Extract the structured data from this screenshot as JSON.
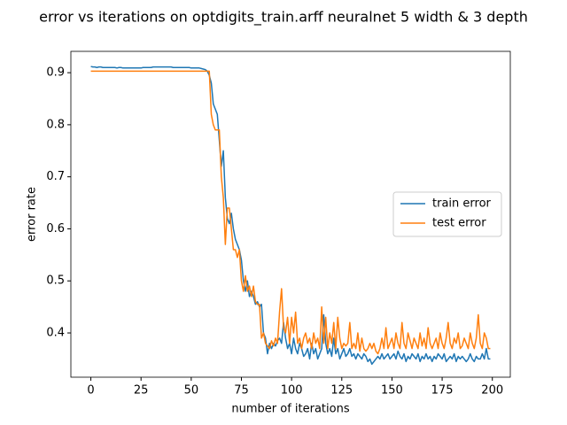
{
  "chart_data": {
    "type": "line",
    "title": "error vs iterations on optdigits_train.arff neuralnet 5 width & 3 depth",
    "x_label": "number of iterations",
    "y_label": "error rate",
    "xlim": [
      -9.95,
      208.95
    ],
    "ylim": [
      0.315,
      0.941
    ],
    "xticks": [
      0,
      25,
      50,
      75,
      100,
      125,
      150,
      175,
      200
    ],
    "yticks": [
      0.4,
      0.5,
      0.6,
      0.7,
      0.8,
      0.9
    ],
    "legend": "center right",
    "x": [
      0,
      1,
      2,
      3,
      4,
      5,
      6,
      7,
      8,
      9,
      10,
      11,
      12,
      13,
      14,
      15,
      16,
      17,
      18,
      19,
      20,
      21,
      22,
      23,
      24,
      25,
      26,
      27,
      28,
      29,
      30,
      31,
      32,
      33,
      34,
      35,
      36,
      37,
      38,
      39,
      40,
      41,
      42,
      43,
      44,
      45,
      46,
      47,
      48,
      49,
      50,
      51,
      52,
      53,
      54,
      55,
      56,
      57,
      58,
      59,
      60,
      61,
      62,
      63,
      64,
      65,
      66,
      67,
      68,
      69,
      70,
      71,
      72,
      73,
      74,
      75,
      76,
      77,
      78,
      79,
      80,
      81,
      82,
      83,
      84,
      85,
      86,
      87,
      88,
      89,
      90,
      91,
      92,
      93,
      94,
      95,
      96,
      97,
      98,
      99,
      100,
      101,
      102,
      103,
      104,
      105,
      106,
      107,
      108,
      109,
      110,
      111,
      112,
      113,
      114,
      115,
      116,
      117,
      118,
      119,
      120,
      121,
      122,
      123,
      124,
      125,
      126,
      127,
      128,
      129,
      130,
      131,
      132,
      133,
      134,
      135,
      136,
      137,
      138,
      139,
      140,
      141,
      142,
      143,
      144,
      145,
      146,
      147,
      148,
      149,
      150,
      151,
      152,
      153,
      154,
      155,
      156,
      157,
      158,
      159,
      160,
      161,
      162,
      163,
      164,
      165,
      166,
      167,
      168,
      169,
      170,
      171,
      172,
      173,
      174,
      175,
      176,
      177,
      178,
      179,
      180,
      181,
      182,
      183,
      184,
      185,
      186,
      187,
      188,
      189,
      190,
      191,
      192,
      193,
      194,
      195,
      196,
      197,
      198,
      199
    ],
    "series": [
      {
        "name": "train error",
        "color": "#1f77b4",
        "values": [
          0.912,
          0.911,
          0.911,
          0.91,
          0.911,
          0.911,
          0.91,
          0.91,
          0.91,
          0.91,
          0.91,
          0.91,
          0.91,
          0.909,
          0.91,
          0.91,
          0.909,
          0.909,
          0.909,
          0.909,
          0.909,
          0.909,
          0.909,
          0.909,
          0.909,
          0.909,
          0.91,
          0.91,
          0.91,
          0.91,
          0.91,
          0.911,
          0.911,
          0.911,
          0.911,
          0.911,
          0.911,
          0.911,
          0.911,
          0.911,
          0.911,
          0.91,
          0.91,
          0.91,
          0.91,
          0.91,
          0.91,
          0.91,
          0.91,
          0.91,
          0.909,
          0.909,
          0.909,
          0.909,
          0.909,
          0.908,
          0.907,
          0.906,
          0.903,
          0.895,
          0.88,
          0.84,
          0.83,
          0.82,
          0.77,
          0.72,
          0.75,
          0.66,
          0.62,
          0.61,
          0.63,
          0.6,
          0.58,
          0.57,
          0.56,
          0.54,
          0.5,
          0.48,
          0.5,
          0.47,
          0.48,
          0.47,
          0.455,
          0.46,
          0.45,
          0.455,
          0.4,
          0.39,
          0.36,
          0.38,
          0.37,
          0.38,
          0.375,
          0.385,
          0.39,
          0.38,
          0.42,
          0.39,
          0.37,
          0.38,
          0.36,
          0.39,
          0.37,
          0.36,
          0.38,
          0.37,
          0.355,
          0.36,
          0.37,
          0.35,
          0.38,
          0.36,
          0.37,
          0.35,
          0.36,
          0.37,
          0.435,
          0.38,
          0.36,
          0.37,
          0.355,
          0.39,
          0.36,
          0.37,
          0.35,
          0.36,
          0.37,
          0.355,
          0.36,
          0.37,
          0.355,
          0.36,
          0.35,
          0.36,
          0.355,
          0.35,
          0.36,
          0.355,
          0.345,
          0.35,
          0.34,
          0.345,
          0.35,
          0.355,
          0.35,
          0.36,
          0.35,
          0.355,
          0.36,
          0.35,
          0.355,
          0.36,
          0.35,
          0.365,
          0.355,
          0.35,
          0.36,
          0.345,
          0.355,
          0.35,
          0.36,
          0.355,
          0.35,
          0.36,
          0.345,
          0.355,
          0.35,
          0.36,
          0.35,
          0.355,
          0.345,
          0.355,
          0.35,
          0.36,
          0.355,
          0.35,
          0.36,
          0.345,
          0.35,
          0.355,
          0.35,
          0.36,
          0.345,
          0.355,
          0.35,
          0.355,
          0.35,
          0.345,
          0.35,
          0.36,
          0.35,
          0.345,
          0.355,
          0.35,
          0.35,
          0.36,
          0.35,
          0.37,
          0.35,
          0.35
        ]
      },
      {
        "name": "test error",
        "color": "#ff7f0e",
        "values": [
          0.903,
          0.903,
          0.903,
          0.903,
          0.903,
          0.903,
          0.903,
          0.903,
          0.903,
          0.903,
          0.903,
          0.903,
          0.903,
          0.903,
          0.903,
          0.903,
          0.903,
          0.903,
          0.903,
          0.903,
          0.903,
          0.903,
          0.903,
          0.903,
          0.903,
          0.903,
          0.903,
          0.903,
          0.903,
          0.903,
          0.903,
          0.903,
          0.903,
          0.903,
          0.903,
          0.903,
          0.903,
          0.903,
          0.903,
          0.903,
          0.903,
          0.903,
          0.903,
          0.903,
          0.903,
          0.903,
          0.903,
          0.903,
          0.903,
          0.903,
          0.903,
          0.903,
          0.903,
          0.903,
          0.903,
          0.903,
          0.903,
          0.903,
          0.903,
          0.903,
          0.82,
          0.8,
          0.79,
          0.79,
          0.79,
          0.7,
          0.66,
          0.57,
          0.64,
          0.64,
          0.6,
          0.56,
          0.56,
          0.545,
          0.56,
          0.5,
          0.48,
          0.51,
          0.48,
          0.49,
          0.47,
          0.49,
          0.46,
          0.455,
          0.455,
          0.39,
          0.4,
          0.38,
          0.375,
          0.37,
          0.385,
          0.375,
          0.39,
          0.38,
          0.44,
          0.485,
          0.41,
          0.4,
          0.43,
          0.38,
          0.43,
          0.4,
          0.44,
          0.38,
          0.39,
          0.37,
          0.39,
          0.4,
          0.38,
          0.39,
          0.37,
          0.4,
          0.38,
          0.39,
          0.37,
          0.45,
          0.38,
          0.43,
          0.37,
          0.4,
          0.38,
          0.42,
          0.37,
          0.43,
          0.39,
          0.37,
          0.38,
          0.375,
          0.38,
          0.42,
          0.37,
          0.38,
          0.37,
          0.4,
          0.365,
          0.39,
          0.37,
          0.365,
          0.37,
          0.38,
          0.37,
          0.38,
          0.365,
          0.36,
          0.37,
          0.39,
          0.37,
          0.41,
          0.37,
          0.38,
          0.39,
          0.37,
          0.4,
          0.38,
          0.37,
          0.42,
          0.38,
          0.37,
          0.4,
          0.385,
          0.37,
          0.39,
          0.38,
          0.37,
          0.4,
          0.375,
          0.39,
          0.37,
          0.41,
          0.38,
          0.37,
          0.38,
          0.39,
          0.37,
          0.4,
          0.38,
          0.37,
          0.39,
          0.42,
          0.38,
          0.37,
          0.39,
          0.38,
          0.4,
          0.37,
          0.375,
          0.39,
          0.38,
          0.37,
          0.4,
          0.38,
          0.37,
          0.39,
          0.435,
          0.38,
          0.37,
          0.4,
          0.39,
          0.37,
          0.37
        ]
      }
    ]
  }
}
